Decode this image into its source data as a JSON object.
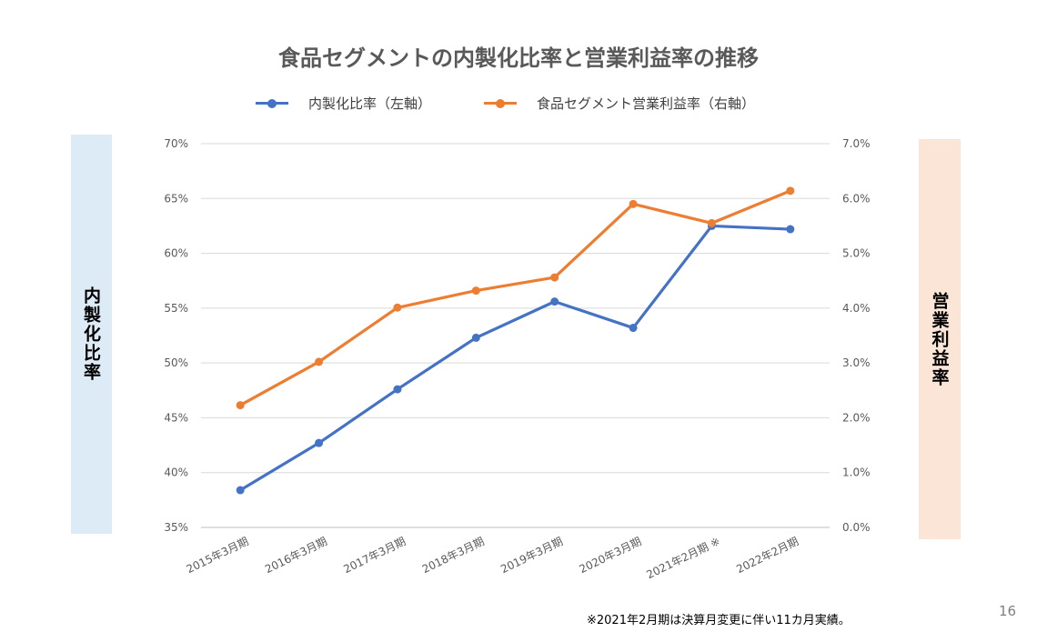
{
  "page_number": "16",
  "footnote": "※2021年2月期は決算月変更に伴い11カ月実績。",
  "left_side_label": "内製化比率",
  "right_side_label": "営業利益率",
  "chart_data": {
    "type": "line",
    "title": "食品セグメントの内製化比率と営業利益率の推移",
    "categories": [
      "2015年3月期",
      "2016年3月期",
      "2017年3月期",
      "2018年3月期",
      "2019年3月期",
      "2020年3月期",
      "2021年2月期 ※",
      "2022年2月期"
    ],
    "series": [
      {
        "name": "内製化比率（左軸）",
        "axis": "left",
        "color": "#4472c4",
        "values": [
          0.384,
          0.427,
          0.476,
          0.523,
          0.556,
          0.532,
          0.625,
          0.622
        ]
      },
      {
        "name": "食品セグメント営業利益率（右軸）",
        "axis": "right",
        "color": "#ed7d31",
        "values": [
          0.0223,
          0.0302,
          0.0401,
          0.0432,
          0.0456,
          0.059,
          0.0555,
          0.0614
        ]
      }
    ],
    "y_left": {
      "min": 0.35,
      "max": 0.7,
      "ticks": [
        0.35,
        0.4,
        0.45,
        0.5,
        0.55,
        0.6,
        0.65,
        0.7
      ],
      "tick_labels": [
        "35%",
        "40%",
        "45%",
        "50%",
        "55%",
        "60%",
        "65%",
        "70%"
      ]
    },
    "y_right": {
      "min": 0.0,
      "max": 0.07,
      "ticks": [
        0.0,
        0.01,
        0.02,
        0.03,
        0.04,
        0.05,
        0.06,
        0.07
      ],
      "tick_labels": [
        "0.0%",
        "1.0%",
        "2.0%",
        "3.0%",
        "4.0%",
        "5.0%",
        "6.0%",
        "7.0%"
      ]
    },
    "grid": true,
    "legend_position": "top"
  }
}
